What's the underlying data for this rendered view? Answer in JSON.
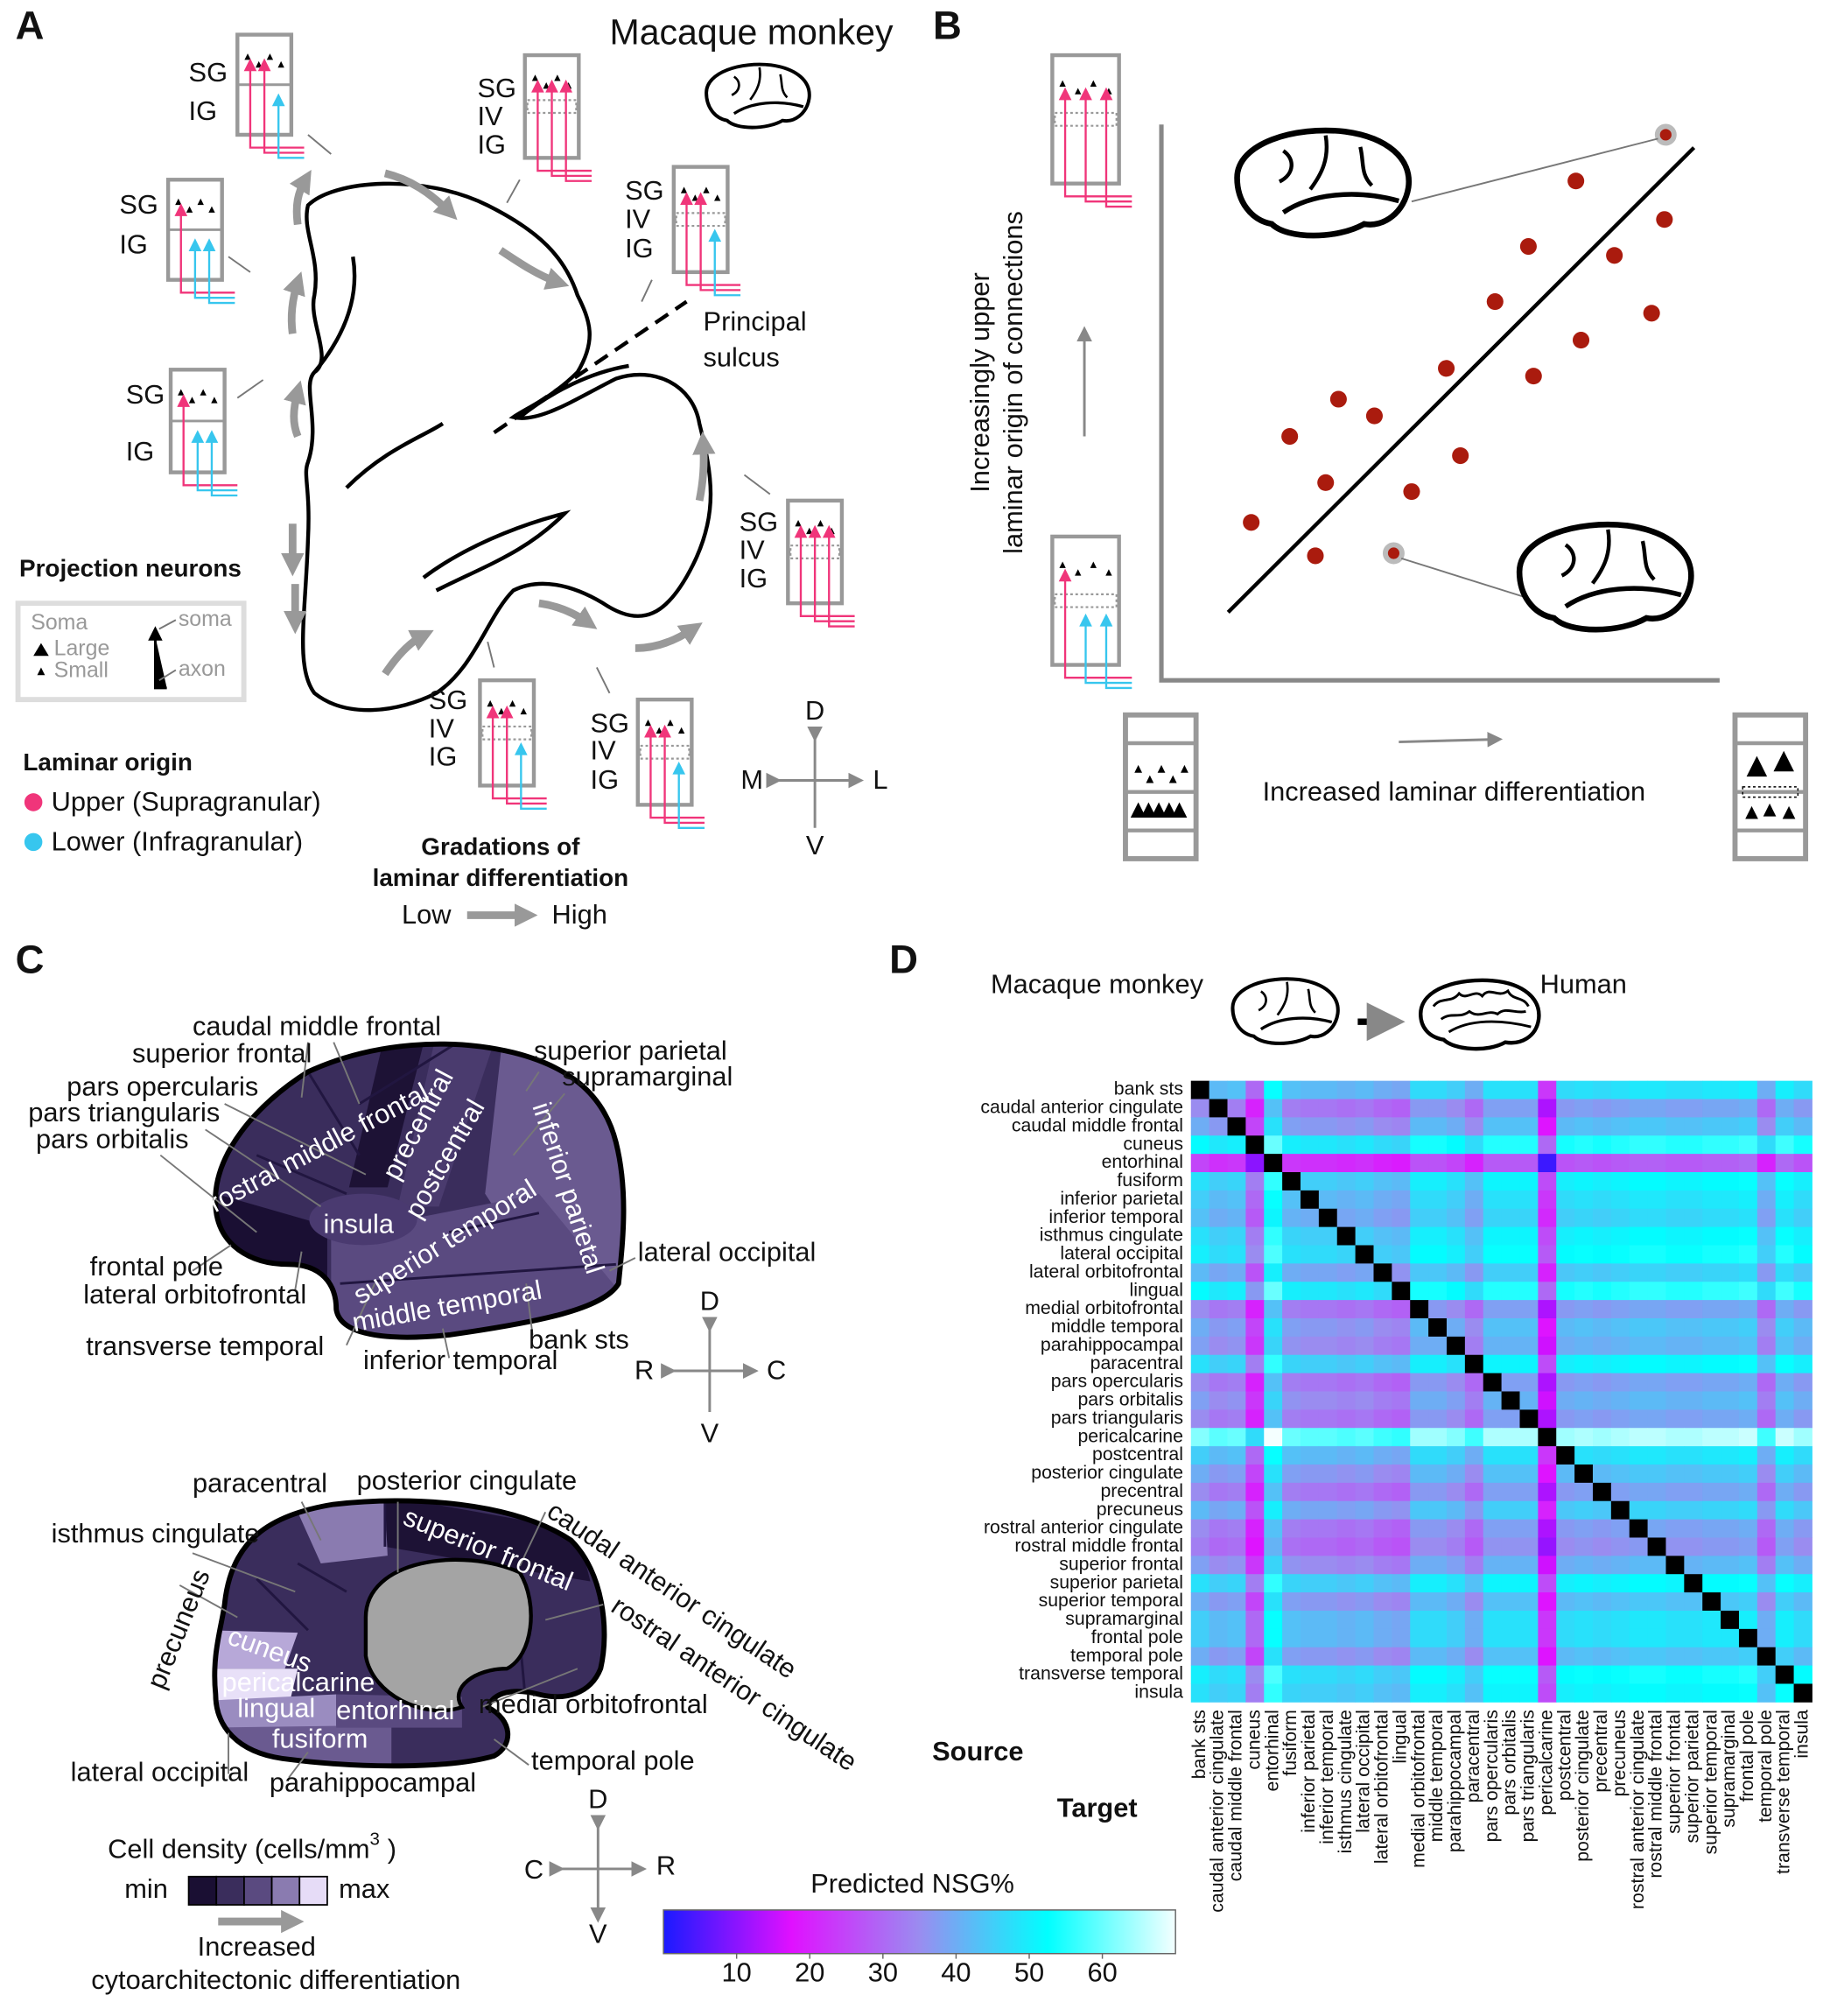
{
  "panel_a": {
    "label": "A",
    "title": "Macaque monkey",
    "layers": {
      "sg": "SG",
      "iv": "IV",
      "ig": "IG"
    },
    "principal_sulcus": [
      "Principal",
      "sulcus"
    ],
    "legend": {
      "title": "Projection neurons",
      "soma": "Soma",
      "large": "Large",
      "small": "Small",
      "soma_arrow": "soma",
      "axon": "axon"
    },
    "laminar": {
      "title": "Laminar origin",
      "upper": "Upper (Supragranular)",
      "lower": "Lower (Infragranular)",
      "upper_color": "#f0357a",
      "lower_color": "#37c6ee"
    },
    "gradation": {
      "title": [
        "Gradations of",
        "laminar differentiation"
      ],
      "low": "Low",
      "high": "High"
    },
    "compass": {
      "d": "D",
      "v": "V",
      "m": "M",
      "l": "L"
    }
  },
  "panel_b": {
    "label": "B",
    "y_label": [
      "Increasingly upper",
      "laminar origin of connections"
    ],
    "x_label": "Increased laminar differentiation"
  },
  "panel_c": {
    "label": "C",
    "lateral": [
      "caudal middle frontal",
      "superior frontal",
      "pars opercularis",
      "pars triangularis",
      "pars orbitalis",
      "frontal pole",
      "lateral orbitofrontal",
      "transverse temporal",
      "inferior temporal",
      "bank sts",
      "lateral occipital",
      "superior parietal",
      "supramarginal",
      "rostral middle frontal",
      "precentral",
      "postcentral",
      "insula",
      "superior temporal",
      "inferior parietal",
      "middle temporal"
    ],
    "medial": [
      "paracentral",
      "posterior cingulate",
      "isthmus cingulate",
      "precuneus",
      "caudal anterior cingulate",
      "rostral anterior cingulate",
      "medial orbitofrontal",
      "temporal pole",
      "lateral occipital",
      "parahippocampal",
      "superior frontal",
      "cuneus",
      "pericalcarine",
      "lingual",
      "entorhinal",
      "fusiform"
    ],
    "compass_lateral": {
      "d": "D",
      "v": "V",
      "r": "R",
      "c": "C"
    },
    "compass_medial": {
      "d": "D",
      "v": "V",
      "r": "R",
      "c": "C"
    },
    "legend": {
      "title": "Cell density (cells/mm",
      "sup": "3",
      "close": ")",
      "min": "min",
      "max": "max",
      "arrow": [
        "Increased",
        "cytoarchitectonic differentiation"
      ],
      "colors": [
        "#1a0f33",
        "#3a2d5c",
        "#5a4a80",
        "#8a7bb0",
        "#e6dcf7"
      ]
    }
  },
  "panel_d": {
    "label": "D",
    "species_from": "Macaque monkey",
    "species_to": "Human"
  },
  "chart_data": {
    "type": "heatmap",
    "row_axis_label": "Source",
    "col_axis_label": "Target",
    "colorbar_label": "Predicted  NSG%",
    "clim": [
      0,
      70
    ],
    "colorbar_ticks": [
      10,
      20,
      30,
      40,
      50,
      60
    ],
    "colormap": [
      "#1a1aff",
      "#e010ff",
      "#9a8cf0",
      "#00ffff",
      "#f4ffff"
    ],
    "null_color": "#000000",
    "categories": [
      "bank sts",
      "caudal anterior cingulate",
      "caudal middle frontal",
      "cuneus",
      "entorhinal",
      "fusiform",
      "inferior parietal",
      "inferior temporal",
      "isthmus cingulate",
      "lateral occipital",
      "lateral orbitofrontal",
      "lingual",
      "medial orbitofrontal",
      "middle temporal",
      "parahippocampal",
      "paracentral",
      "pars opercularis",
      "pars orbitalis",
      "pars triangularis",
      "pericalcarine",
      "postcentral",
      "posterior cingulate",
      "precentral",
      "precuneus",
      "rostral anterior cingulate",
      "rostral middle frontal",
      "superior frontal",
      "superior parietal",
      "superior temporal",
      "supramarginal",
      "frontal pole",
      "temporal pole",
      "transverse temporal",
      "insula"
    ],
    "values": [
      [
        null,
        42,
        43,
        30,
        53,
        43,
        42,
        42,
        41,
        42,
        40,
        39,
        47,
        47,
        45,
        40,
        48,
        48,
        48,
        23,
        47,
        48,
        47,
        48,
        49,
        49,
        48,
        48,
        49,
        49,
        50,
        40,
        50,
        47
      ],
      [
        35,
        null,
        33,
        20,
        43,
        33,
        32,
        32,
        31,
        32,
        30,
        29,
        37,
        37,
        35,
        30,
        38,
        38,
        38,
        13,
        37,
        38,
        37,
        38,
        39,
        39,
        38,
        38,
        39,
        39,
        40,
        30,
        40,
        37
      ],
      [
        40,
        37,
        null,
        25,
        48,
        38,
        37,
        37,
        36,
        37,
        35,
        34,
        42,
        42,
        40,
        35,
        43,
        43,
        43,
        18,
        42,
        43,
        42,
        43,
        44,
        44,
        43,
        43,
        44,
        44,
        45,
        35,
        45,
        42
      ],
      [
        52,
        49,
        50,
        null,
        60,
        50,
        49,
        49,
        48,
        49,
        47,
        46,
        54,
        54,
        52,
        47,
        55,
        55,
        55,
        30,
        54,
        55,
        54,
        55,
        56,
        56,
        55,
        55,
        56,
        56,
        57,
        47,
        57,
        54
      ],
      [
        25,
        22,
        23,
        10,
        null,
        23,
        22,
        22,
        21,
        22,
        20,
        19,
        27,
        27,
        25,
        20,
        28,
        28,
        28,
        3,
        27,
        28,
        27,
        28,
        29,
        29,
        28,
        28,
        29,
        29,
        30,
        20,
        30,
        27
      ],
      [
        48,
        45,
        46,
        33,
        56,
        null,
        45,
        45,
        44,
        45,
        43,
        42,
        50,
        50,
        48,
        43,
        51,
        51,
        51,
        26,
        50,
        51,
        50,
        51,
        52,
        52,
        51,
        51,
        52,
        52,
        53,
        43,
        53,
        50
      ],
      [
        45,
        42,
        43,
        30,
        53,
        43,
        null,
        42,
        41,
        42,
        40,
        39,
        47,
        47,
        45,
        40,
        48,
        48,
        48,
        23,
        47,
        48,
        47,
        48,
        49,
        49,
        48,
        48,
        49,
        49,
        50,
        40,
        50,
        47
      ],
      [
        43,
        40,
        41,
        28,
        51,
        41,
        40,
        null,
        39,
        40,
        38,
        37,
        45,
        45,
        43,
        38,
        46,
        46,
        46,
        21,
        45,
        46,
        45,
        46,
        47,
        47,
        46,
        46,
        47,
        47,
        48,
        38,
        48,
        45
      ],
      [
        48,
        45,
        46,
        33,
        56,
        46,
        45,
        45,
        null,
        45,
        43,
        42,
        50,
        50,
        48,
        43,
        51,
        51,
        51,
        26,
        50,
        51,
        50,
        51,
        52,
        52,
        51,
        51,
        52,
        52,
        53,
        43,
        53,
        50
      ],
      [
        50,
        47,
        48,
        35,
        58,
        48,
        47,
        47,
        46,
        null,
        45,
        44,
        52,
        52,
        50,
        45,
        53,
        53,
        53,
        28,
        52,
        53,
        52,
        53,
        54,
        54,
        53,
        53,
        54,
        54,
        55,
        45,
        55,
        52
      ],
      [
        42,
        39,
        40,
        27,
        50,
        40,
        39,
        39,
        38,
        39,
        null,
        36,
        44,
        44,
        42,
        37,
        45,
        45,
        45,
        20,
        44,
        45,
        44,
        45,
        46,
        46,
        45,
        45,
        46,
        46,
        47,
        37,
        47,
        44
      ],
      [
        52,
        49,
        50,
        37,
        60,
        50,
        49,
        49,
        48,
        49,
        47,
        null,
        54,
        54,
        52,
        47,
        55,
        55,
        55,
        30,
        54,
        55,
        54,
        55,
        56,
        56,
        55,
        55,
        56,
        56,
        57,
        47,
        57,
        54
      ],
      [
        35,
        32,
        33,
        20,
        43,
        33,
        32,
        32,
        31,
        32,
        30,
        29,
        null,
        37,
        35,
        30,
        38,
        38,
        38,
        13,
        37,
        38,
        37,
        38,
        39,
        39,
        38,
        38,
        39,
        39,
        40,
        30,
        40,
        37
      ],
      [
        40,
        37,
        38,
        25,
        48,
        38,
        37,
        37,
        36,
        37,
        35,
        34,
        42,
        null,
        40,
        35,
        43,
        43,
        43,
        18,
        42,
        43,
        42,
        43,
        44,
        44,
        43,
        43,
        44,
        44,
        45,
        35,
        45,
        42
      ],
      [
        38,
        35,
        36,
        23,
        46,
        36,
        35,
        35,
        34,
        35,
        33,
        32,
        40,
        40,
        null,
        33,
        41,
        41,
        41,
        16,
        40,
        41,
        40,
        41,
        42,
        42,
        41,
        41,
        42,
        42,
        43,
        33,
        43,
        40
      ],
      [
        48,
        45,
        46,
        33,
        56,
        46,
        45,
        45,
        44,
        45,
        43,
        42,
        50,
        50,
        48,
        null,
        51,
        51,
        51,
        26,
        50,
        51,
        50,
        51,
        52,
        52,
        51,
        51,
        52,
        52,
        53,
        43,
        53,
        50
      ],
      [
        35,
        32,
        33,
        20,
        43,
        33,
        32,
        32,
        31,
        32,
        30,
        29,
        37,
        37,
        35,
        30,
        null,
        38,
        38,
        13,
        37,
        38,
        37,
        38,
        39,
        39,
        38,
        38,
        39,
        39,
        40,
        30,
        40,
        37
      ],
      [
        38,
        35,
        36,
        23,
        46,
        36,
        35,
        35,
        34,
        35,
        33,
        32,
        40,
        40,
        38,
        33,
        41,
        null,
        41,
        16,
        40,
        41,
        40,
        41,
        42,
        42,
        41,
        41,
        42,
        42,
        43,
        33,
        43,
        40
      ],
      [
        35,
        32,
        33,
        20,
        43,
        33,
        32,
        32,
        31,
        32,
        30,
        29,
        37,
        37,
        35,
        30,
        38,
        38,
        null,
        13,
        37,
        38,
        37,
        38,
        39,
        39,
        38,
        38,
        39,
        39,
        40,
        30,
        40,
        37
      ],
      [
        62,
        59,
        60,
        47,
        70,
        60,
        59,
        59,
        58,
        59,
        57,
        56,
        64,
        64,
        62,
        57,
        65,
        65,
        65,
        null,
        64,
        65,
        64,
        65,
        66,
        66,
        65,
        65,
        66,
        66,
        67,
        57,
        67,
        64
      ],
      [
        45,
        42,
        43,
        30,
        53,
        43,
        42,
        42,
        41,
        42,
        40,
        39,
        47,
        47,
        45,
        40,
        48,
        48,
        48,
        23,
        null,
        48,
        47,
        48,
        49,
        49,
        48,
        48,
        49,
        49,
        50,
        40,
        50,
        47
      ],
      [
        40,
        37,
        38,
        25,
        48,
        38,
        37,
        37,
        36,
        37,
        35,
        34,
        42,
        42,
        40,
        35,
        43,
        43,
        43,
        18,
        42,
        null,
        42,
        43,
        44,
        44,
        43,
        43,
        44,
        44,
        45,
        35,
        45,
        42
      ],
      [
        35,
        32,
        33,
        20,
        43,
        33,
        32,
        32,
        31,
        32,
        30,
        29,
        37,
        37,
        35,
        30,
        38,
        38,
        38,
        13,
        37,
        38,
        null,
        38,
        39,
        39,
        38,
        38,
        39,
        39,
        40,
        30,
        40,
        37
      ],
      [
        42,
        39,
        40,
        27,
        50,
        40,
        39,
        39,
        38,
        39,
        37,
        36,
        44,
        44,
        42,
        37,
        45,
        45,
        45,
        20,
        44,
        45,
        44,
        null,
        46,
        46,
        45,
        45,
        46,
        46,
        47,
        37,
        47,
        44
      ],
      [
        35,
        32,
        33,
        20,
        43,
        33,
        32,
        32,
        31,
        32,
        30,
        29,
        37,
        37,
        35,
        30,
        38,
        38,
        38,
        13,
        37,
        38,
        37,
        38,
        null,
        39,
        38,
        38,
        39,
        39,
        40,
        30,
        40,
        37
      ],
      [
        33,
        30,
        31,
        18,
        41,
        31,
        30,
        30,
        29,
        30,
        28,
        27,
        35,
        35,
        33,
        28,
        36,
        36,
        36,
        11,
        35,
        36,
        35,
        36,
        37,
        null,
        36,
        36,
        37,
        37,
        38,
        28,
        38,
        35
      ],
      [
        38,
        35,
        36,
        23,
        46,
        36,
        35,
        35,
        34,
        35,
        33,
        32,
        40,
        40,
        38,
        33,
        41,
        41,
        41,
        16,
        40,
        41,
        40,
        41,
        42,
        42,
        null,
        41,
        42,
        42,
        43,
        33,
        43,
        40
      ],
      [
        48,
        45,
        46,
        33,
        56,
        46,
        45,
        45,
        44,
        45,
        43,
        42,
        50,
        50,
        48,
        43,
        51,
        51,
        51,
        26,
        50,
        51,
        50,
        51,
        52,
        52,
        51,
        null,
        52,
        52,
        53,
        43,
        53,
        50
      ],
      [
        40,
        37,
        38,
        25,
        48,
        38,
        37,
        37,
        36,
        37,
        35,
        34,
        42,
        42,
        40,
        35,
        43,
        43,
        43,
        18,
        42,
        43,
        42,
        43,
        44,
        44,
        43,
        43,
        null,
        44,
        45,
        35,
        45,
        42
      ],
      [
        45,
        42,
        43,
        30,
        53,
        43,
        42,
        42,
        41,
        42,
        40,
        39,
        47,
        47,
        45,
        40,
        48,
        48,
        48,
        23,
        47,
        48,
        47,
        48,
        49,
        49,
        48,
        48,
        49,
        null,
        50,
        40,
        50,
        47
      ],
      [
        45,
        42,
        43,
        30,
        53,
        43,
        42,
        42,
        41,
        42,
        40,
        39,
        47,
        47,
        45,
        40,
        48,
        48,
        48,
        23,
        47,
        48,
        47,
        48,
        49,
        49,
        48,
        48,
        49,
        49,
        null,
        40,
        50,
        47
      ],
      [
        40,
        37,
        38,
        25,
        48,
        38,
        37,
        37,
        36,
        37,
        35,
        34,
        42,
        42,
        40,
        35,
        43,
        43,
        43,
        18,
        42,
        43,
        42,
        43,
        44,
        44,
        43,
        43,
        44,
        44,
        45,
        null,
        45,
        42
      ],
      [
        50,
        47,
        48,
        35,
        58,
        48,
        47,
        47,
        46,
        47,
        45,
        44,
        52,
        52,
        50,
        45,
        53,
        53,
        53,
        28,
        52,
        53,
        52,
        53,
        54,
        54,
        53,
        53,
        54,
        54,
        55,
        45,
        null,
        52
      ],
      [
        48,
        45,
        46,
        33,
        56,
        46,
        45,
        45,
        44,
        45,
        43,
        42,
        50,
        50,
        48,
        43,
        51,
        51,
        51,
        26,
        50,
        51,
        50,
        51,
        52,
        52,
        51,
        51,
        52,
        52,
        53,
        43,
        53,
        null
      ]
    ]
  }
}
